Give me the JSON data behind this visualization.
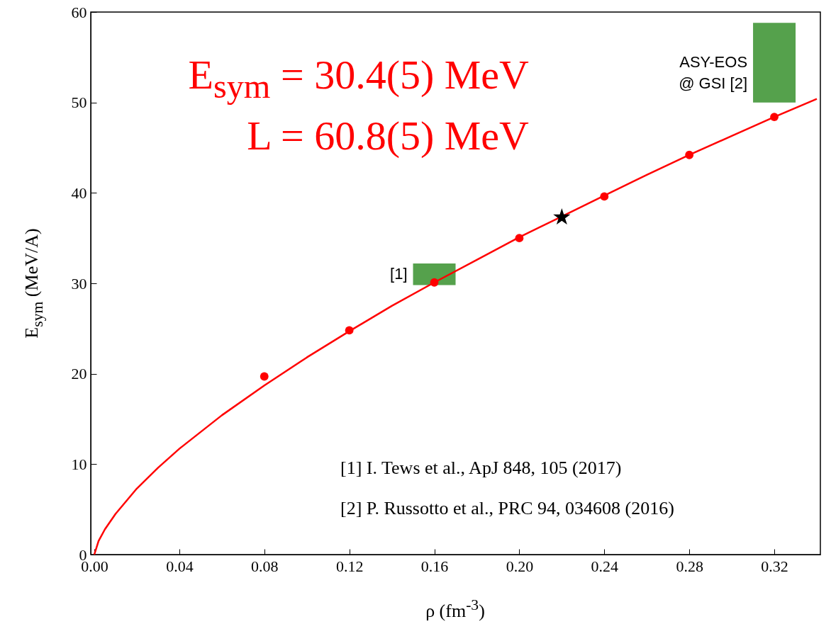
{
  "chart_data": {
    "type": "line",
    "xlabel": "ρ (fm$^{-3}$)",
    "ylabel": "E$_{sym}$ (MeV/A)",
    "xlim": [
      0,
      0.34
    ],
    "ylim": [
      0,
      60
    ],
    "xticks": [
      {
        "value": 0,
        "label": "0.00"
      },
      {
        "value": 0.04,
        "label": "0.04"
      },
      {
        "value": 0.08,
        "label": "0.08"
      },
      {
        "value": 0.12,
        "label": "0.12"
      },
      {
        "value": 0.16,
        "label": "0.16"
      },
      {
        "value": 0.2,
        "label": "0.20"
      },
      {
        "value": 0.24,
        "label": "0.24"
      },
      {
        "value": 0.28,
        "label": "0.28"
      },
      {
        "value": 0.32,
        "label": "0.32"
      }
    ],
    "yticks": [
      0,
      10,
      20,
      30,
      40,
      50,
      60
    ],
    "series": [
      {
        "color": "#ff0000",
        "marker": "none",
        "x": [
          0,
          0.002,
          0.005,
          0.01,
          0.02,
          0.03,
          0.04,
          0.06,
          0.08,
          0.1,
          0.12,
          0.14,
          0.16,
          0.18,
          0.2,
          0.22,
          0.24,
          0.26,
          0.28,
          0.3,
          0.32,
          0.34
        ],
        "values": [
          0,
          1.5,
          2.8,
          4.5,
          7.3,
          9.6,
          11.7,
          15.4,
          18.7,
          21.8,
          24.7,
          27.5,
          30.1,
          32.6,
          35.1,
          37.4,
          39.7,
          42.0,
          44.2,
          46.3,
          48.4,
          50.4
        ]
      },
      {
        "type": "scatter",
        "color": "#ff0000",
        "marker": "circle",
        "x": [
          0.08,
          0.12,
          0.16,
          0.2,
          0.24,
          0.28,
          0.32
        ],
        "values": [
          19.7,
          24.8,
          30.1,
          35.0,
          39.6,
          44.2,
          48.4
        ]
      },
      {
        "type": "scatter",
        "color": "#000000",
        "marker": "star",
        "x": [
          0.22
        ],
        "values": [
          37.3
        ]
      },
      {
        "type": "bar",
        "name": "[1]",
        "color": "#55a14c",
        "x": [
          0.16
        ],
        "base": [
          29.8
        ],
        "values": [
          2.4
        ]
      },
      {
        "type": "bar",
        "name": "ASY-EOS\n@ GSI [2]",
        "color": "#55a14c",
        "x": [
          0.32
        ],
        "base": [
          50.0
        ],
        "values": [
          8.8
        ]
      }
    ],
    "annotations": [
      "E$_{sym}$ = 30.4(5) MeV",
      "L = 60.8(5) MeV",
      "[1] I. Tews et al., ApJ 848, 105 (2017)",
      "[2] P. Russotto et al., PRC 94, 034608 (2016)"
    ]
  }
}
